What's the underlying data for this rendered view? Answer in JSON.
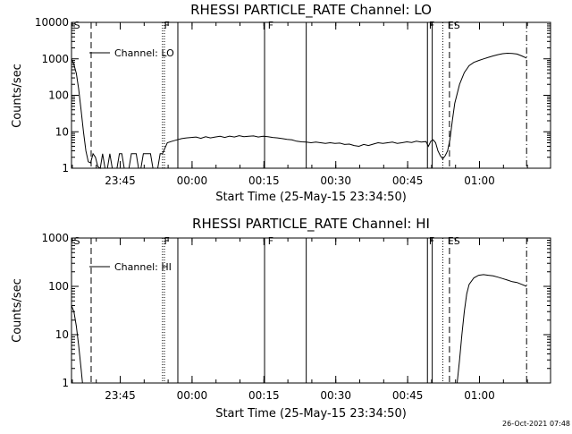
{
  "timestamp": "26-Oct-2021 07:48",
  "chart_data": [
    {
      "type": "line",
      "title": "RHESSI PARTICLE_RATE Channel: LO",
      "xlabel": "Start Time (25-May-15 23:34:50)",
      "ylabel": "Counts/sec",
      "yscale": "log",
      "ylim": [
        1,
        10000
      ],
      "xlim_minutes": [
        0,
        100
      ],
      "x_ticks": [
        {
          "t": 10.17,
          "label": "23:45"
        },
        {
          "t": 25.17,
          "label": "00:00"
        },
        {
          "t": 40.17,
          "label": "00:15"
        },
        {
          "t": 55.17,
          "label": "00:30"
        },
        {
          "t": 70.17,
          "label": "00:45"
        },
        {
          "t": 85.17,
          "label": "01:00"
        }
      ],
      "y_ticks": [
        {
          "v": 1,
          "label": "1"
        },
        {
          "v": 10,
          "label": "10"
        },
        {
          "v": 100,
          "label": "100"
        },
        {
          "v": 1000,
          "label": "1000"
        },
        {
          "v": 10000,
          "label": "10000"
        }
      ],
      "legend": {
        "position": "top-left",
        "label": "Channel: LO"
      },
      "flags": [
        {
          "t": 0.5,
          "label": "S"
        },
        {
          "t": 19.3,
          "label": "F"
        },
        {
          "t": 41.0,
          "label": "F"
        },
        {
          "t": 74.6,
          "label": "F"
        },
        {
          "t": 78.5,
          "label": "ES"
        }
      ],
      "markers": [
        {
          "t": 4.1,
          "style": "dashed"
        },
        {
          "t": 19.0,
          "style": "dotted"
        },
        {
          "t": 19.4,
          "style": "dotted"
        },
        {
          "t": 22.2,
          "style": "solid"
        },
        {
          "t": 40.3,
          "style": "solid"
        },
        {
          "t": 49.0,
          "style": "solid"
        },
        {
          "t": 74.3,
          "style": "solid"
        },
        {
          "t": 75.3,
          "style": "solid"
        },
        {
          "t": 77.5,
          "style": "dotted"
        },
        {
          "t": 78.9,
          "style": "dashed"
        },
        {
          "t": 95.0,
          "style": "dashdot"
        }
      ],
      "series": [
        {
          "x": [
            0,
            0.5,
            1,
            1.5,
            2,
            2.5,
            3,
            3.5,
            4,
            4.5,
            5,
            5.5,
            6,
            6.5,
            7,
            7.5,
            8,
            8.5,
            9,
            9.5,
            10,
            10.5,
            11,
            11.5,
            12,
            12.5,
            13,
            13.5,
            14,
            14.5,
            15,
            15.5,
            16,
            16.5,
            17,
            17.5,
            18,
            18.5,
            19,
            20,
            21,
            22,
            23,
            24,
            25,
            26,
            27,
            28,
            29,
            30,
            31,
            32,
            33,
            34,
            35,
            36,
            37,
            38,
            39,
            40,
            41,
            42,
            43,
            44,
            45,
            46,
            47,
            48,
            49,
            50,
            51,
            52,
            53,
            54,
            55,
            56,
            57,
            58,
            59,
            60,
            61,
            62,
            63,
            64,
            65,
            66,
            67,
            68,
            69,
            70,
            71,
            72,
            73,
            74,
            74.5,
            75,
            75.5,
            76,
            76.5,
            77,
            77.5,
            78,
            78.5,
            79,
            79.5,
            80,
            81,
            82,
            83,
            84,
            85,
            86,
            87,
            88,
            89,
            90,
            91,
            92,
            93,
            94,
            95
          ],
          "y": [
            1000,
            700,
            400,
            150,
            40,
            10,
            3,
            1.5,
            1.4,
            2.5,
            2.0,
            1.1,
            1.0,
            2.5,
            1.0,
            1.0,
            2.5,
            1.0,
            1.0,
            1.0,
            2.5,
            2.5,
            1.0,
            1.0,
            1.0,
            2.5,
            2.5,
            2.5,
            1.0,
            1.0,
            2.5,
            2.5,
            2.5,
            2.5,
            1.0,
            1.0,
            1.0,
            2.5,
            2.5,
            5.0,
            5.5,
            6.0,
            6.5,
            6.8,
            7.0,
            7.2,
            6.6,
            7.3,
            6.8,
            7.2,
            7.5,
            7.0,
            7.6,
            7.2,
            7.8,
            7.3,
            7.5,
            7.7,
            7.2,
            7.5,
            7.3,
            7.0,
            6.8,
            6.5,
            6.2,
            6.0,
            5.5,
            5.3,
            5.2,
            5.0,
            5.2,
            5.0,
            4.8,
            5.0,
            4.8,
            4.9,
            4.5,
            4.6,
            4.2,
            4.0,
            4.5,
            4.2,
            4.6,
            5.0,
            4.8,
            5.0,
            5.2,
            4.8,
            5.0,
            5.3,
            5.1,
            5.5,
            5.2,
            5.4,
            4.0,
            5.5,
            6.0,
            5.0,
            3.0,
            2.2,
            1.8,
            2.2,
            3.0,
            6.0,
            20,
            60,
            200,
            420,
            650,
            800,
            900,
            1000,
            1100,
            1200,
            1300,
            1380,
            1420,
            1400,
            1350,
            1200,
            1050
          ]
        }
      ]
    },
    {
      "type": "line",
      "title": "RHESSI PARTICLE_RATE Channel: HI",
      "xlabel": "Start Time (25-May-15 23:34:50)",
      "ylabel": "Counts/sec",
      "yscale": "log",
      "ylim": [
        1,
        1000
      ],
      "xlim_minutes": [
        0,
        100
      ],
      "x_ticks": [
        {
          "t": 10.17,
          "label": "23:45"
        },
        {
          "t": 25.17,
          "label": "00:00"
        },
        {
          "t": 40.17,
          "label": "00:15"
        },
        {
          "t": 55.17,
          "label": "00:30"
        },
        {
          "t": 70.17,
          "label": "00:45"
        },
        {
          "t": 85.17,
          "label": "01:00"
        }
      ],
      "y_ticks": [
        {
          "v": 1,
          "label": "1"
        },
        {
          "v": 10,
          "label": "10"
        },
        {
          "v": 100,
          "label": "100"
        },
        {
          "v": 1000,
          "label": "1000"
        }
      ],
      "legend": {
        "position": "top-left",
        "label": "Channel: HI"
      },
      "flags": [
        {
          "t": 0.5,
          "label": "S"
        },
        {
          "t": 19.3,
          "label": "F"
        },
        {
          "t": 41.0,
          "label": "F"
        },
        {
          "t": 74.6,
          "label": "F"
        },
        {
          "t": 78.5,
          "label": "ES"
        }
      ],
      "markers": [
        {
          "t": 4.1,
          "style": "dashed"
        },
        {
          "t": 19.0,
          "style": "dotted"
        },
        {
          "t": 19.4,
          "style": "dotted"
        },
        {
          "t": 22.2,
          "style": "solid"
        },
        {
          "t": 40.3,
          "style": "solid"
        },
        {
          "t": 49.0,
          "style": "solid"
        },
        {
          "t": 74.3,
          "style": "solid"
        },
        {
          "t": 75.3,
          "style": "solid"
        },
        {
          "t": 77.5,
          "style": "dotted"
        },
        {
          "t": 78.9,
          "style": "dashed"
        },
        {
          "t": 95.0,
          "style": "dashdot"
        }
      ],
      "series": [
        {
          "x": [
            0,
            0.5,
            1,
            1.5,
            2,
            2.3
          ],
          "y": [
            40,
            30,
            15,
            6,
            2,
            1
          ]
        },
        {
          "x": [
            80.5,
            81,
            81.5,
            82,
            82.5,
            83,
            84,
            85,
            86,
            87,
            88,
            89,
            90,
            91,
            92,
            93,
            94,
            95
          ],
          "y": [
            1,
            3,
            10,
            30,
            70,
            110,
            150,
            170,
            175,
            170,
            165,
            155,
            145,
            135,
            125,
            120,
            110,
            100
          ]
        }
      ]
    }
  ]
}
